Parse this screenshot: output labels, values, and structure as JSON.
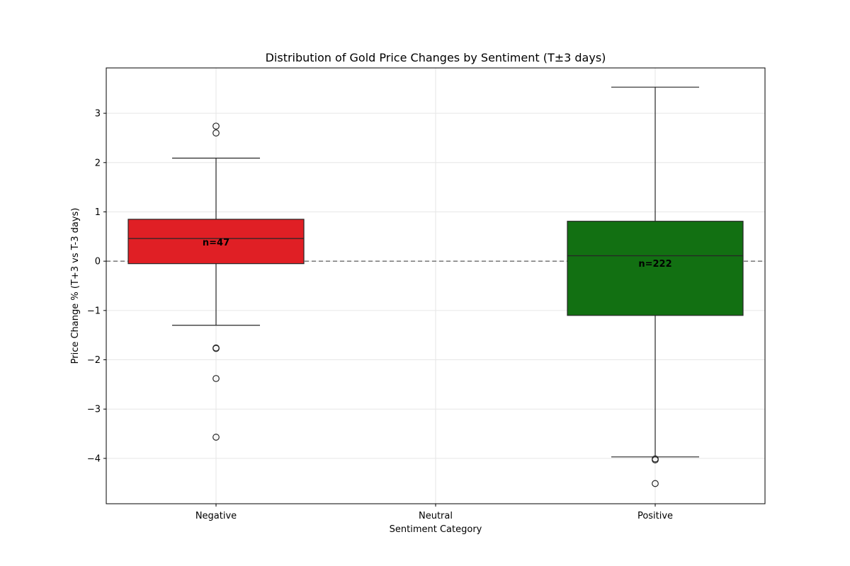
{
  "chart_data": {
    "type": "box",
    "title": "Distribution of Gold Price Changes by Sentiment (T±3 days)",
    "xlabel": "Sentiment Category",
    "ylabel": "Price Change % (T+3 vs T-3 days)",
    "ylim": [
      -4.92,
      3.92
    ],
    "yticks": [
      -4,
      -3,
      -2,
      -1,
      0,
      1,
      2,
      3
    ],
    "ytick_labels": [
      "−4",
      "−3",
      "−2",
      "−1",
      "0",
      "1",
      "2",
      "3"
    ],
    "categories": [
      "Negative",
      "Neutral",
      "Positive"
    ],
    "grid": true,
    "reference_line": {
      "y": 0,
      "style": "dashed",
      "color": "#808080"
    },
    "boxes": [
      {
        "category": "Negative",
        "q1": -0.05,
        "median": 0.46,
        "q3": 0.85,
        "whisker_low": -1.3,
        "whisker_high": 2.09,
        "outliers": [
          2.74,
          2.6,
          -1.76,
          -1.77,
          -2.38,
          -3.57
        ],
        "n_label": "n=47",
        "n_label_y": 0.38,
        "color": "#e01f25"
      },
      {
        "category": "Positive",
        "q1": -1.1,
        "median": 0.11,
        "q3": 0.81,
        "whisker_low": -3.97,
        "whisker_high": 3.53,
        "outliers": [
          -4.01,
          -4.03,
          -4.51
        ],
        "n_label": "n=222",
        "n_label_y": -0.05,
        "color": "#127012"
      }
    ]
  }
}
